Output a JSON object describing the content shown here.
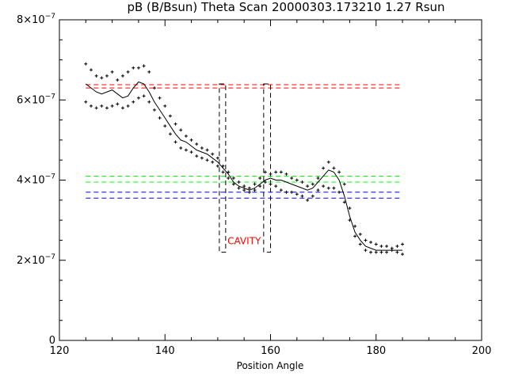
{
  "chart_data": {
    "type": "scatter",
    "title": "pB (B/Bsun) Theta Scan 20000303.173210 1.27 Rsun",
    "xlabel": "Position Angle",
    "ylabel": "",
    "xlim": [
      120,
      200
    ],
    "ylim": [
      0,
      8e-07
    ],
    "x_ticks": [
      {
        "value": 120,
        "label": "120"
      },
      {
        "value": 140,
        "label": "140"
      },
      {
        "value": 160,
        "label": "160"
      },
      {
        "value": 180,
        "label": "180"
      },
      {
        "value": 200,
        "label": "200"
      }
    ],
    "y_ticks": [
      {
        "value": 0,
        "base": "0",
        "exp": ""
      },
      {
        "value": 2e-07,
        "base": "2×10",
        "exp": "−7"
      },
      {
        "value": 4e-07,
        "base": "4×10",
        "exp": "−7"
      },
      {
        "value": 6e-07,
        "base": "6×10",
        "exp": "−7"
      },
      {
        "value": 8e-07,
        "base": "8×10",
        "exp": "−7"
      }
    ],
    "grid": false,
    "series": [
      {
        "style": "points",
        "color": "#000000",
        "x": [
          125,
          126,
          127,
          128,
          129,
          130,
          131,
          132,
          133,
          134,
          135,
          136,
          137,
          138,
          139,
          140,
          141,
          142,
          143,
          144,
          145,
          146,
          147,
          148,
          149,
          150,
          151,
          152,
          153,
          154,
          155,
          156,
          157,
          158,
          159,
          160,
          161,
          162,
          163,
          164,
          165,
          166,
          167,
          168,
          169,
          170,
          171,
          172,
          173,
          174,
          175,
          176,
          177,
          178,
          179,
          180,
          181,
          182,
          183,
          184,
          185
        ],
        "y": [
          6.9e-07,
          6.75e-07,
          6.6e-07,
          6.55e-07,
          6.6e-07,
          6.7e-07,
          6.5e-07,
          6.6e-07,
          6.7e-07,
          6.8e-07,
          6.8e-07,
          6.85e-07,
          6.7e-07,
          6.3e-07,
          6.05e-07,
          5.85e-07,
          5.6e-07,
          5.4e-07,
          5.25e-07,
          5.1e-07,
          5e-07,
          4.9e-07,
          4.8e-07,
          4.75e-07,
          4.65e-07,
          4.55e-07,
          4.35e-07,
          4.2e-07,
          4.05e-07,
          3.95e-07,
          3.85e-07,
          3.8e-07,
          3.9e-07,
          4.05e-07,
          4.2e-07,
          4.15e-07,
          4.2e-07,
          4.2e-07,
          4.15e-07,
          4.05e-07,
          4e-07,
          3.95e-07,
          3.85e-07,
          3.9e-07,
          4.05e-07,
          4.3e-07,
          4.45e-07,
          4.3e-07,
          4.2e-07,
          3.9e-07,
          3.3e-07,
          2.85e-07,
          2.65e-07,
          2.5e-07,
          2.45e-07,
          2.4e-07,
          2.35e-07,
          2.35e-07,
          2.3e-07,
          2.35e-07,
          2.4e-07
        ]
      },
      {
        "style": "points",
        "color": "#000000",
        "x": [
          125,
          126,
          127,
          128,
          129,
          130,
          131,
          132,
          133,
          134,
          135,
          136,
          137,
          138,
          139,
          140,
          141,
          142,
          143,
          144,
          145,
          146,
          147,
          148,
          149,
          150,
          151,
          152,
          153,
          154,
          155,
          156,
          157,
          158,
          159,
          160,
          161,
          162,
          163,
          164,
          165,
          166,
          167,
          168,
          169,
          170,
          171,
          172,
          173,
          174,
          175,
          176,
          177,
          178,
          179,
          180,
          181,
          182,
          183,
          184,
          185
        ],
        "y": [
          5.95e-07,
          5.85e-07,
          5.8e-07,
          5.85e-07,
          5.8e-07,
          5.85e-07,
          5.9e-07,
          5.8e-07,
          5.85e-07,
          5.95e-07,
          6.05e-07,
          6.1e-07,
          5.95e-07,
          5.75e-07,
          5.55e-07,
          5.35e-07,
          5.15e-07,
          4.95e-07,
          4.8e-07,
          4.75e-07,
          4.7e-07,
          4.6e-07,
          4.55e-07,
          4.5e-07,
          4.45e-07,
          4.35e-07,
          4.2e-07,
          4.05e-07,
          3.9e-07,
          3.8e-07,
          3.75e-07,
          3.7e-07,
          3.75e-07,
          3.85e-07,
          3.95e-07,
          3.9e-07,
          3.85e-07,
          3.75e-07,
          3.7e-07,
          3.7e-07,
          3.65e-07,
          3.6e-07,
          3.5e-07,
          3.6e-07,
          3.75e-07,
          3.85e-07,
          3.8e-07,
          3.8e-07,
          3.7e-07,
          3.45e-07,
          3e-07,
          2.6e-07,
          2.4e-07,
          2.25e-07,
          2.2e-07,
          2.2e-07,
          2.2e-07,
          2.2e-07,
          2.25e-07,
          2.2e-07,
          2.15e-07
        ]
      },
      {
        "style": "line",
        "color": "#000000",
        "x": [
          125,
          126,
          127,
          128,
          129,
          130,
          131,
          132,
          133,
          134,
          135,
          136,
          137,
          138,
          139,
          140,
          141,
          142,
          143,
          144,
          145,
          146,
          147,
          148,
          149,
          150,
          151,
          152,
          153,
          154,
          155,
          156,
          157,
          158,
          159,
          160,
          161,
          162,
          163,
          164,
          165,
          166,
          167,
          168,
          169,
          170,
          171,
          172,
          173,
          174,
          175,
          176,
          177,
          178,
          179,
          180,
          181,
          182,
          183,
          184,
          185
        ],
        "y": [
          6.4e-07,
          6.3e-07,
          6.2e-07,
          6.15e-07,
          6.2e-07,
          6.25e-07,
          6.15e-07,
          6.05e-07,
          6.1e-07,
          6.3e-07,
          6.45e-07,
          6.4e-07,
          6.2e-07,
          5.95e-07,
          5.75e-07,
          5.55e-07,
          5.35e-07,
          5.15e-07,
          5e-07,
          4.95e-07,
          4.85e-07,
          4.75e-07,
          4.7e-07,
          4.65e-07,
          4.55e-07,
          4.45e-07,
          4.3e-07,
          4.15e-07,
          3.95e-07,
          3.85e-07,
          3.8e-07,
          3.75e-07,
          3.8e-07,
          3.9e-07,
          4e-07,
          4.05e-07,
          4e-07,
          4e-07,
          3.95e-07,
          3.9e-07,
          3.85e-07,
          3.8e-07,
          3.75e-07,
          3.8e-07,
          3.95e-07,
          4.1e-07,
          4.25e-07,
          4.2e-07,
          4e-07,
          3.6e-07,
          3.1e-07,
          2.7e-07,
          2.5e-07,
          2.35e-07,
          2.3e-07,
          2.25e-07,
          2.25e-07,
          2.25e-07,
          2.25e-07,
          2.25e-07,
          2.25e-07
        ]
      }
    ],
    "reference_lines": [
      {
        "y": 6.38e-07,
        "x_range": [
          125,
          185
        ],
        "color": "#ff0000",
        "style": "dashed"
      },
      {
        "y": 6.3e-07,
        "x_range": [
          125,
          185
        ],
        "color": "#ff0000",
        "style": "dashed"
      },
      {
        "y": 4.1e-07,
        "x_range": [
          125,
          185
        ],
        "color": "#00ff00",
        "style": "dashed"
      },
      {
        "y": 3.95e-07,
        "x_range": [
          125,
          185
        ],
        "color": "#00ff00",
        "style": "dashed"
      },
      {
        "y": 3.7e-07,
        "x_range": [
          125,
          185
        ],
        "color": "#0000ff",
        "style": "dashed"
      },
      {
        "y": 3.55e-07,
        "x_range": [
          125,
          185
        ],
        "color": "#0000ff",
        "style": "dashed"
      }
    ],
    "regions": [
      {
        "x_range": [
          150.3,
          151.5
        ],
        "y_range": [
          2.2e-07,
          6.4e-07
        ],
        "color": "#000000",
        "style": "dashed"
      },
      {
        "x_range": [
          158.7,
          160.0
        ],
        "y_range": [
          2.2e-07,
          6.4e-07
        ],
        "color": "#000000",
        "style": "dashed"
      }
    ],
    "annotations": [
      {
        "text": "CAVITY",
        "x": 155,
        "y": 2.4e-07,
        "color": "#ff0000"
      }
    ]
  }
}
